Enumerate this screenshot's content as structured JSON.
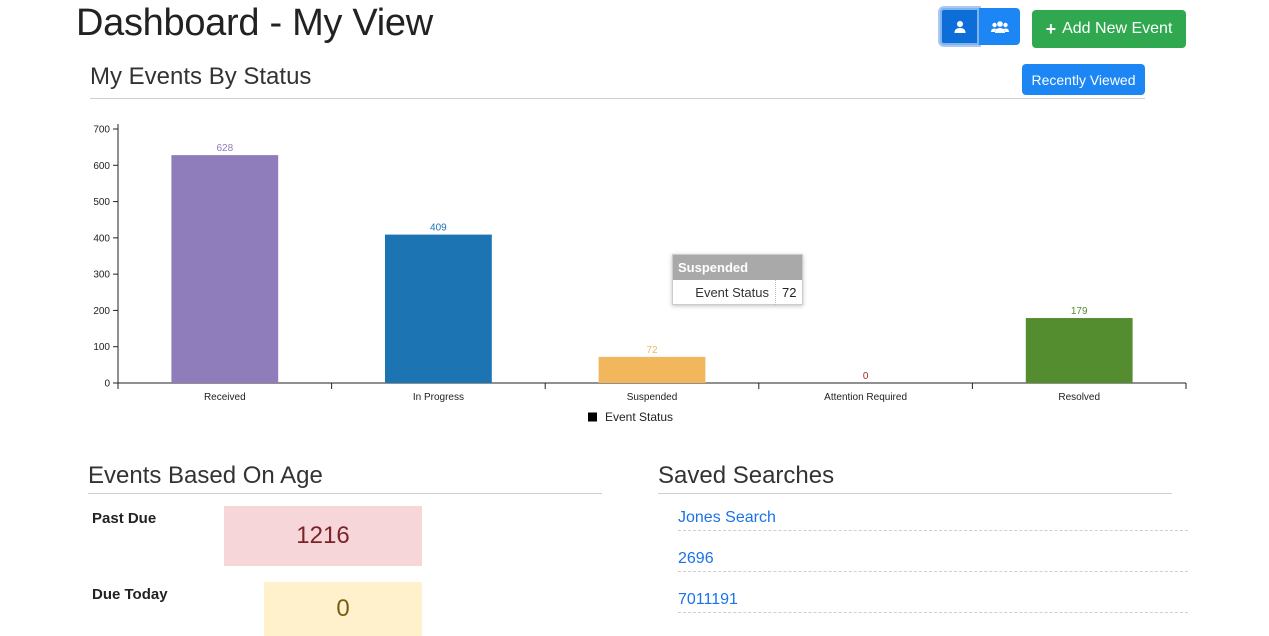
{
  "header": {
    "title": "Dashboard - My View",
    "add_event_label": "Add New Event",
    "user_icon": "user-icon",
    "group_icon": "users-icon"
  },
  "events_by_status": {
    "title": "My Events By Status",
    "recently_viewed_label": "Recently Viewed"
  },
  "chart_data": {
    "type": "bar",
    "categories": [
      "Received",
      "In Progress",
      "Suspended",
      "Attention Required",
      "Resolved"
    ],
    "values": [
      628,
      409,
      72,
      0,
      179
    ],
    "colors": [
      "#8f7cbb",
      "#1c74b3",
      "#f2b65d",
      "#9e2a2a",
      "#538d2f"
    ],
    "legend": "Event Status",
    "legend_placement": "bottom",
    "ylim": [
      0,
      700
    ],
    "yticks": [
      0,
      100,
      200,
      300,
      400,
      500,
      600,
      700
    ],
    "grid": false
  },
  "tooltip": {
    "title": "Suspended",
    "series": "Event Status",
    "value": "72"
  },
  "events_based_on_age": {
    "title": "Events Based On Age",
    "past_due_label": "Past Due",
    "past_due_value": "1216",
    "due_today_label": "Due Today",
    "due_today_value": "0"
  },
  "saved_searches": {
    "title": "Saved Searches",
    "items": [
      "Jones Search",
      "2696",
      "7011191"
    ]
  },
  "colors": {
    "primary": "#1c86f5",
    "success": "#2fa84f",
    "danger_bg": "#f6d6d9",
    "warning_bg": "#fff1cc"
  }
}
